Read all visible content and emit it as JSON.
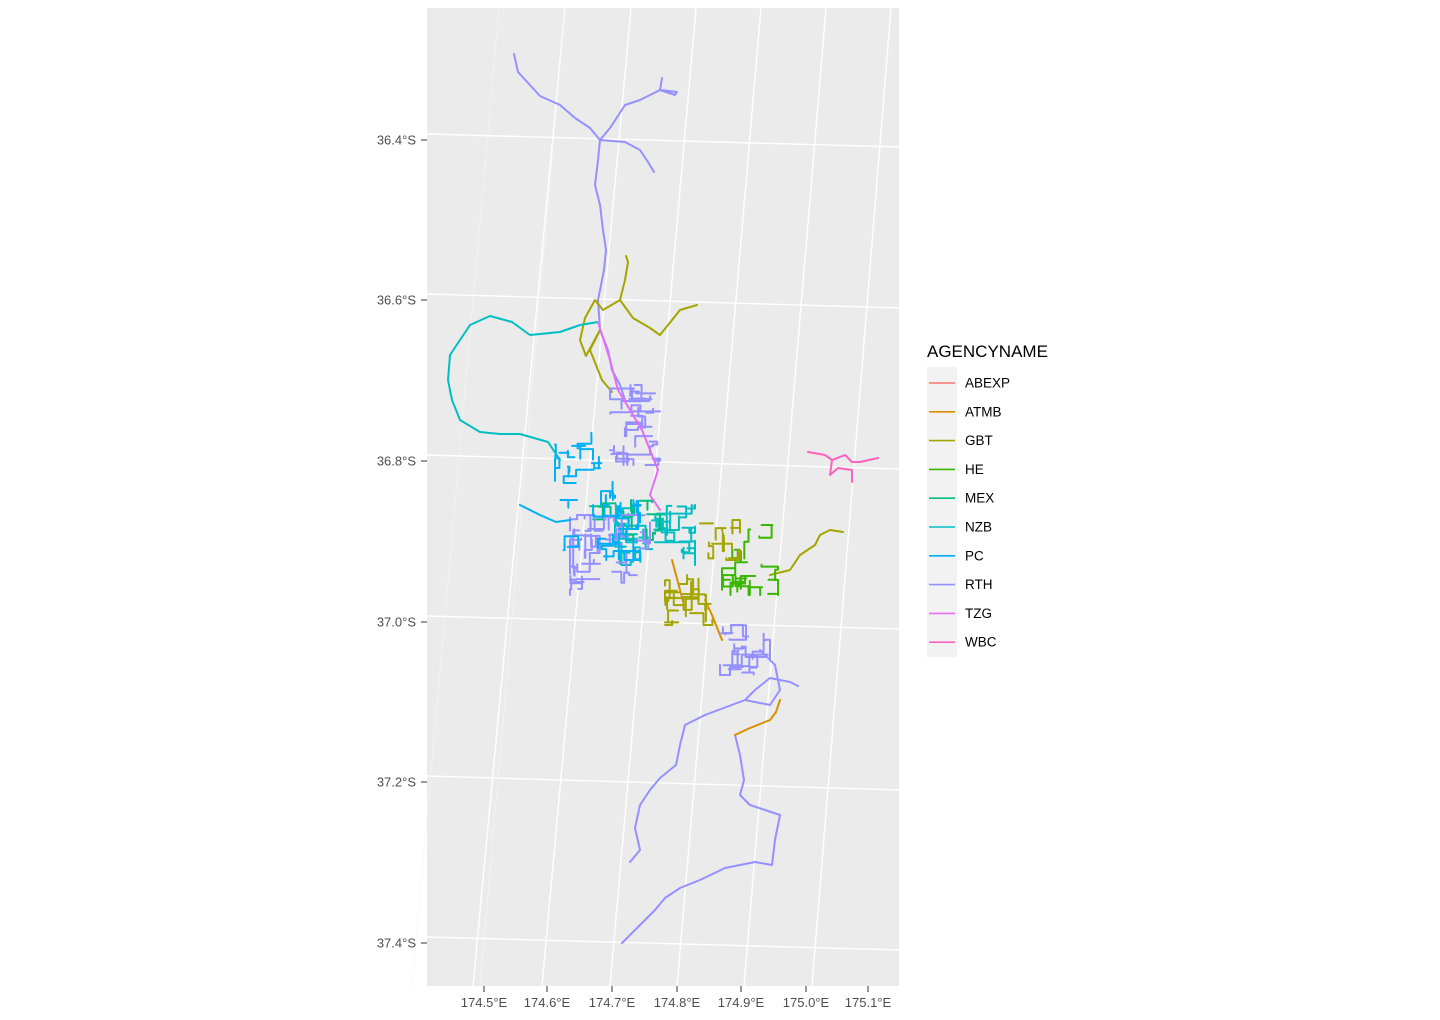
{
  "chart_data": {
    "type": "map",
    "legend_title": "AGENCYNAME",
    "legend_position": "right",
    "grid": true,
    "x_ticks": [
      "174.5°E",
      "174.6°E",
      "174.7°E",
      "174.8°E",
      "174.9°E",
      "175.0°E",
      "175.1°E"
    ],
    "y_ticks": [
      "36.4°S",
      "36.6°S",
      "36.8°S",
      "37.0°S",
      "37.2°S",
      "37.4°S"
    ],
    "x_range": [
      174.41,
      175.15
    ],
    "y_range": [
      -37.46,
      -36.21
    ],
    "series": [
      {
        "name": "ABEXP",
        "color": "#F8766D"
      },
      {
        "name": "ATMB",
        "color": "#D89000"
      },
      {
        "name": "GBT",
        "color": "#A3A500"
      },
      {
        "name": "HE",
        "color": "#39B600"
      },
      {
        "name": "MEX",
        "color": "#00BF7D"
      },
      {
        "name": "NZB",
        "color": "#00BFC4"
      },
      {
        "name": "PC",
        "color": "#00B0F6"
      },
      {
        "name": "RTH",
        "color": "#9590FF"
      },
      {
        "name": "TZG",
        "color": "#E76BF3"
      },
      {
        "name": "WBC",
        "color": "#FF62BC"
      }
    ]
  }
}
